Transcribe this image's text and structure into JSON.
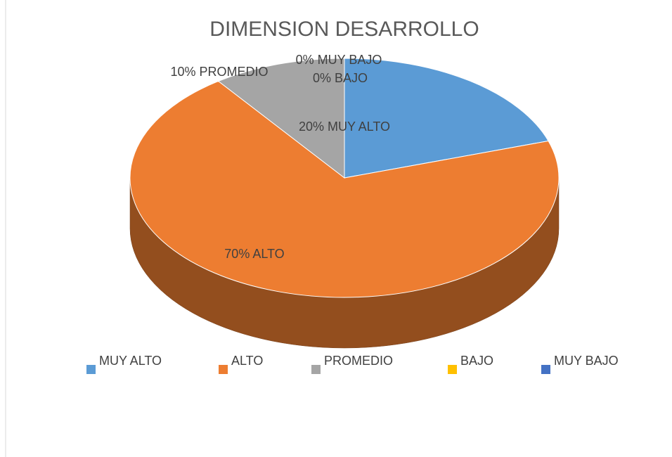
{
  "chart_data": {
    "type": "pie3d",
    "title": "DIMENSION DESARROLLO",
    "categories": [
      "MUY ALTO",
      "ALTO",
      "PROMEDIO",
      "BAJO",
      "MUY BAJO"
    ],
    "values": [
      20,
      70,
      10,
      0,
      0
    ],
    "value_labels": [
      "20% MUY ALTO",
      "70% ALTO",
      "10% PROMEDIO",
      "0% BAJO",
      "0% MUY BAJO"
    ],
    "colors": [
      "#5b9bd5",
      "#ed7d31",
      "#a5a5a5",
      "#ffc000",
      "#4472c4"
    ],
    "legend": "bottom"
  }
}
